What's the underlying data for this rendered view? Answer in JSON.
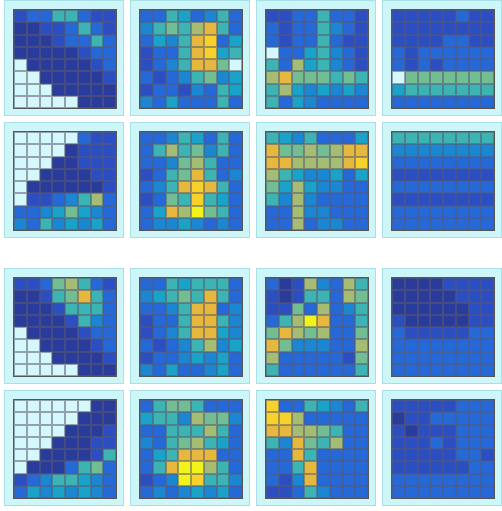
{
  "palette": {
    "0": "#d4f8fb",
    "1": "#2a3c9b",
    "2": "#2b4fc2",
    "3": "#2568d8",
    "4": "#1b86d2",
    "5": "#1aa3c9",
    "6": "#3cb4b3",
    "7": "#72bd92",
    "8": "#a5bd73",
    "9": "#e6b93e",
    "10": "#f8d22a",
    "11": "#f2f31a"
  },
  "heatmaps": [
    [
      [
        2,
        3,
        3,
        6,
        6,
        3,
        2,
        2
      ],
      [
        1,
        1,
        2,
        2,
        3,
        6,
        3,
        2
      ],
      [
        1,
        1,
        1,
        2,
        3,
        3,
        6,
        3
      ],
      [
        1,
        1,
        1,
        1,
        1,
        2,
        3,
        3
      ],
      [
        0,
        1,
        1,
        1,
        1,
        1,
        2,
        3
      ],
      [
        0,
        0,
        1,
        1,
        1,
        1,
        1,
        2
      ],
      [
        0,
        0,
        0,
        1,
        1,
        1,
        1,
        1
      ],
      [
        0,
        0,
        0,
        0,
        0,
        1,
        1,
        1
      ]
    ],
    [
      [
        3,
        3,
        6,
        5,
        3,
        4,
        6,
        3
      ],
      [
        4,
        6,
        7,
        6,
        8,
        9,
        6,
        3
      ],
      [
        3,
        5,
        4,
        6,
        9,
        10,
        3,
        5
      ],
      [
        2,
        3,
        3,
        6,
        9,
        10,
        5,
        6
      ],
      [
        2,
        3,
        4,
        6,
        9,
        9,
        7,
        0
      ],
      [
        3,
        2,
        3,
        4,
        6,
        7,
        4,
        5
      ],
      [
        2,
        3,
        3,
        2,
        4,
        3,
        6,
        5
      ],
      [
        4,
        3,
        5,
        3,
        3,
        3,
        6,
        3
      ]
    ],
    [
      [
        2,
        2,
        3,
        3,
        6,
        3,
        3,
        2
      ],
      [
        3,
        2,
        3,
        3,
        6,
        4,
        3,
        2
      ],
      [
        3,
        2,
        3,
        3,
        6,
        3,
        2,
        2
      ],
      [
        0,
        3,
        3,
        5,
        6,
        4,
        3,
        2
      ],
      [
        6,
        3,
        8,
        5,
        6,
        4,
        3,
        2
      ],
      [
        8,
        9,
        7,
        7,
        7,
        6,
        7,
        6
      ],
      [
        6,
        8,
        5,
        4,
        5,
        4,
        5,
        4
      ],
      [
        6,
        3,
        5,
        4,
        3,
        3,
        3,
        3
      ]
    ],
    [
      [
        2,
        2,
        2,
        2,
        2,
        3,
        2,
        2
      ],
      [
        2,
        2,
        2,
        2,
        2,
        2,
        2,
        2
      ],
      [
        2,
        2,
        2,
        2,
        3,
        3,
        2,
        2
      ],
      [
        3,
        2,
        3,
        3,
        3,
        3,
        3,
        3
      ],
      [
        3,
        2,
        3,
        2,
        3,
        3,
        3,
        3
      ],
      [
        0,
        7,
        7,
        7,
        7,
        7,
        7,
        7
      ],
      [
        5,
        6,
        6,
        6,
        6,
        6,
        6,
        6
      ],
      [
        3,
        3,
        3,
        3,
        3,
        3,
        3,
        3
      ]
    ],
    [
      [
        0,
        0,
        0,
        0,
        0,
        3,
        2,
        2
      ],
      [
        0,
        0,
        0,
        0,
        1,
        2,
        2,
        2
      ],
      [
        0,
        0,
        0,
        1,
        1,
        2,
        2,
        2
      ],
      [
        0,
        0,
        1,
        1,
        1,
        1,
        2,
        2
      ],
      [
        0,
        1,
        1,
        1,
        1,
        1,
        1,
        2
      ],
      [
        0,
        2,
        2,
        3,
        4,
        6,
        8,
        3
      ],
      [
        3,
        3,
        4,
        5,
        7,
        5,
        4,
        3
      ],
      [
        4,
        3,
        6,
        4,
        5,
        4,
        5,
        3
      ]
    ],
    [
      [
        3,
        3,
        4,
        6,
        5,
        3,
        6,
        3
      ],
      [
        3,
        6,
        8,
        6,
        7,
        4,
        6,
        3
      ],
      [
        3,
        3,
        4,
        7,
        8,
        6,
        3,
        3
      ],
      [
        2,
        3,
        6,
        7,
        9,
        6,
        3,
        4
      ],
      [
        3,
        4,
        6,
        9,
        10,
        9,
        6,
        3
      ],
      [
        2,
        3,
        7,
        6,
        10,
        6,
        5,
        3
      ],
      [
        3,
        5,
        9,
        8,
        11,
        7,
        6,
        3
      ],
      [
        3,
        4,
        4,
        5,
        4,
        3,
        4,
        3
      ]
    ],
    [
      [
        6,
        5,
        4,
        6,
        3,
        3,
        3,
        5
      ],
      [
        9,
        7,
        7,
        8,
        7,
        8,
        9,
        9
      ],
      [
        9,
        9,
        8,
        8,
        8,
        8,
        9,
        10
      ],
      [
        8,
        6,
        5,
        4,
        4,
        5,
        3,
        5
      ],
      [
        7,
        5,
        8,
        5,
        4,
        4,
        3,
        3
      ],
      [
        6,
        4,
        8,
        4,
        3,
        3,
        3,
        3
      ],
      [
        3,
        3,
        8,
        4,
        4,
        3,
        3,
        3
      ],
      [
        3,
        3,
        8,
        3,
        4,
        4,
        3,
        3
      ]
    ],
    [
      [
        6,
        6,
        6,
        6,
        6,
        6,
        6,
        6
      ],
      [
        4,
        4,
        4,
        4,
        4,
        4,
        4,
        4
      ],
      [
        3,
        3,
        3,
        3,
        3,
        3,
        3,
        3
      ],
      [
        2,
        2,
        2,
        2,
        2,
        2,
        2,
        2
      ],
      [
        3,
        3,
        3,
        3,
        3,
        3,
        3,
        3
      ],
      [
        2,
        2,
        2,
        2,
        2,
        2,
        2,
        2
      ],
      [
        3,
        3,
        3,
        3,
        3,
        3,
        3,
        3
      ],
      [
        3,
        3,
        3,
        3,
        3,
        3,
        3,
        3
      ]
    ],
    [
      [
        2,
        2,
        3,
        7,
        8,
        6,
        3,
        2
      ],
      [
        1,
        1,
        2,
        6,
        7,
        9,
        6,
        3
      ],
      [
        1,
        1,
        1,
        2,
        6,
        6,
        6,
        3
      ],
      [
        1,
        1,
        1,
        1,
        2,
        6,
        4,
        3
      ],
      [
        0,
        1,
        1,
        1,
        1,
        2,
        3,
        3
      ],
      [
        0,
        0,
        1,
        1,
        1,
        1,
        2,
        3
      ],
      [
        0,
        0,
        0,
        1,
        1,
        1,
        1,
        2
      ],
      [
        0,
        0,
        0,
        0,
        0,
        1,
        1,
        1
      ]
    ],
    [
      [
        3,
        3,
        6,
        5,
        6,
        6,
        6,
        3
      ],
      [
        4,
        5,
        6,
        7,
        6,
        9,
        6,
        3
      ],
      [
        3,
        3,
        4,
        6,
        9,
        9,
        3,
        4
      ],
      [
        2,
        3,
        3,
        6,
        9,
        9,
        6,
        4
      ],
      [
        2,
        3,
        4,
        6,
        9,
        9,
        5,
        4
      ],
      [
        3,
        2,
        3,
        4,
        6,
        8,
        4,
        5
      ],
      [
        2,
        3,
        3,
        4,
        5,
        4,
        5,
        3
      ],
      [
        4,
        3,
        5,
        3,
        3,
        4,
        5,
        3
      ]
    ],
    [
      [
        3,
        1,
        2,
        8,
        4,
        3,
        8,
        6
      ],
      [
        2,
        1,
        2,
        6,
        6,
        3,
        8,
        7
      ],
      [
        2,
        2,
        7,
        3,
        8,
        3,
        4,
        6
      ],
      [
        3,
        6,
        8,
        11,
        9,
        3,
        3,
        6
      ],
      [
        7,
        9,
        8,
        7,
        8,
        3,
        3,
        7
      ],
      [
        9,
        7,
        4,
        4,
        4,
        3,
        3,
        8
      ],
      [
        8,
        3,
        3,
        3,
        3,
        3,
        2,
        7
      ],
      [
        6,
        3,
        3,
        3,
        3,
        3,
        3,
        6
      ]
    ],
    [
      [
        1,
        1,
        1,
        1,
        2,
        2,
        2,
        2
      ],
      [
        1,
        1,
        1,
        1,
        1,
        2,
        2,
        2
      ],
      [
        1,
        1,
        1,
        1,
        1,
        1,
        2,
        2
      ],
      [
        2,
        1,
        1,
        1,
        1,
        1,
        2,
        2
      ],
      [
        3,
        2,
        2,
        2,
        2,
        2,
        3,
        3
      ],
      [
        3,
        3,
        3,
        3,
        3,
        3,
        3,
        3
      ],
      [
        3,
        3,
        3,
        3,
        3,
        3,
        3,
        3
      ],
      [
        3,
        3,
        3,
        3,
        3,
        3,
        3,
        3
      ]
    ],
    [
      [
        0,
        0,
        0,
        0,
        0,
        0,
        1,
        1
      ],
      [
        0,
        0,
        0,
        0,
        0,
        1,
        1,
        1
      ],
      [
        0,
        0,
        0,
        0,
        1,
        1,
        1,
        2
      ],
      [
        0,
        0,
        0,
        1,
        1,
        1,
        2,
        2
      ],
      [
        0,
        0,
        1,
        1,
        1,
        1,
        2,
        6
      ],
      [
        0,
        1,
        1,
        1,
        3,
        6,
        7,
        3
      ],
      [
        2,
        3,
        4,
        6,
        6,
        5,
        4,
        3
      ],
      [
        3,
        5,
        4,
        5,
        4,
        5,
        4,
        3
      ]
    ],
    [
      [
        3,
        6,
        7,
        7,
        6,
        3,
        3,
        3
      ],
      [
        5,
        6,
        6,
        4,
        8,
        7,
        7,
        4
      ],
      [
        3,
        3,
        6,
        6,
        6,
        8,
        6,
        3
      ],
      [
        4,
        3,
        6,
        7,
        8,
        6,
        5,
        3
      ],
      [
        3,
        5,
        6,
        9,
        9,
        9,
        3,
        3
      ],
      [
        3,
        6,
        9,
        11,
        11,
        8,
        6,
        3
      ],
      [
        2,
        3,
        4,
        11,
        10,
        6,
        6,
        4
      ],
      [
        3,
        4,
        3,
        4,
        5,
        4,
        5,
        3
      ]
    ],
    [
      [
        10,
        3,
        3,
        6,
        5,
        4,
        3,
        6
      ],
      [
        10,
        10,
        8,
        3,
        3,
        3,
        3,
        3
      ],
      [
        9,
        9,
        8,
        8,
        7,
        6,
        3,
        3
      ],
      [
        6,
        4,
        9,
        7,
        6,
        8,
        3,
        3
      ],
      [
        3,
        3,
        9,
        6,
        3,
        3,
        3,
        3
      ],
      [
        3,
        3,
        6,
        9,
        3,
        3,
        3,
        3
      ],
      [
        3,
        2,
        4,
        9,
        3,
        3,
        3,
        3
      ],
      [
        2,
        2,
        3,
        6,
        4,
        3,
        3,
        3
      ]
    ],
    [
      [
        2,
        2,
        2,
        2,
        2,
        3,
        3,
        3
      ],
      [
        1,
        2,
        2,
        3,
        3,
        3,
        3,
        3
      ],
      [
        2,
        1,
        2,
        2,
        2,
        3,
        3,
        3
      ],
      [
        2,
        2,
        2,
        3,
        2,
        3,
        3,
        3
      ],
      [
        2,
        2,
        2,
        2,
        2,
        3,
        3,
        2
      ],
      [
        2,
        2,
        2,
        2,
        2,
        2,
        3,
        3
      ],
      [
        3,
        3,
        3,
        3,
        3,
        3,
        3,
        3
      ],
      [
        3,
        3,
        3,
        3,
        3,
        3,
        3,
        3
      ]
    ]
  ]
}
